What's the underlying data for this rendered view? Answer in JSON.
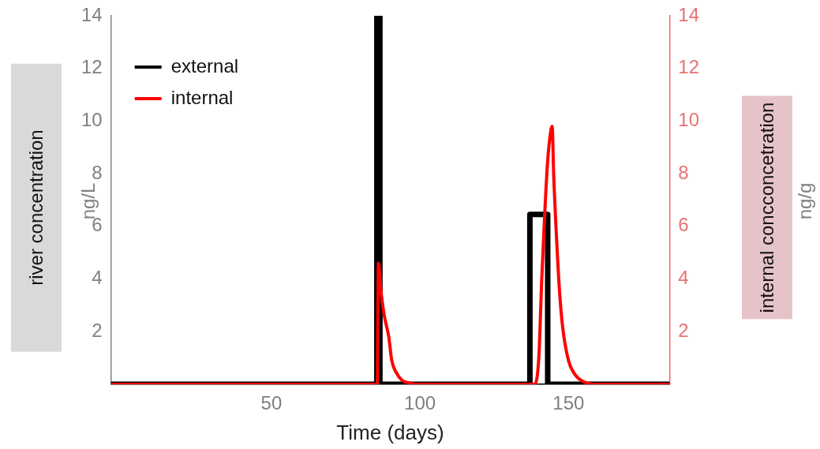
{
  "chart_data": {
    "type": "line",
    "xlabel": "Time (days)",
    "ylabel": "river concentration",
    "y2label": "internal concconcetration",
    "annotations": [
      "ng/L",
      "ng/g"
    ],
    "xlim": [
      -4,
      184
    ],
    "xticks": [
      50,
      100,
      150
    ],
    "ylim": [
      0,
      14
    ],
    "yticks": [
      2,
      4,
      6,
      8,
      10,
      12,
      14
    ],
    "y2lim": [
      0,
      14
    ],
    "y2ticks": [
      2,
      4,
      6,
      8,
      10,
      12,
      14
    ],
    "grid": false,
    "legend": "top left",
    "marker": "none",
    "line_style": "solid",
    "series": [
      {
        "name": "external",
        "color": "#000000",
        "x": [
          -4,
          85.5,
          85.5,
          86.5,
          86.5,
          137,
          137,
          143,
          143,
          184
        ],
        "values": [
          0,
          0,
          14,
          14,
          0,
          0,
          6.45,
          6.45,
          0,
          0
        ]
      },
      {
        "name": "internal",
        "color": "#ff0000",
        "axis": "y2",
        "x": [
          -4,
          85.6,
          86,
          87,
          88,
          89.5,
          90.5,
          92,
          94,
          96.5,
          100,
          138.5,
          140,
          141,
          142,
          143,
          144,
          144.5,
          145,
          146,
          147,
          148,
          150,
          152,
          155,
          160,
          184
        ],
        "values": [
          0,
          0,
          4.6,
          3.4,
          2.6,
          1.8,
          0.9,
          0.45,
          0.15,
          0.05,
          0,
          0,
          1,
          4,
          6.5,
          8.5,
          9.6,
          9.8,
          8,
          5.5,
          3.5,
          2.2,
          0.9,
          0.4,
          0.1,
          0,
          0
        ]
      }
    ]
  }
}
